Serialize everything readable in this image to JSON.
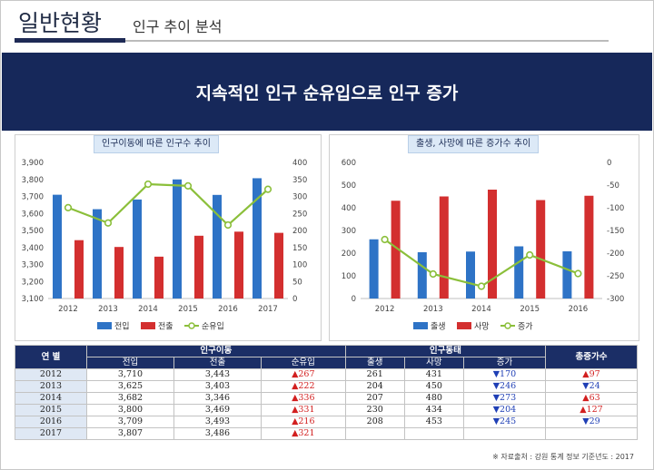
{
  "header": {
    "main": "일반현황",
    "sub": "인구 추이 분석"
  },
  "banner": "지속적인 인구 순유입으로 인구 증가",
  "chart_data": [
    {
      "type": "bar",
      "title": "인구이동에 따른 인구수 추이",
      "categories": [
        "2012",
        "2013",
        "2014",
        "2015",
        "2016",
        "2017"
      ],
      "series": [
        {
          "name": "전입",
          "values": [
            3710,
            3625,
            3682,
            3800,
            3709,
            3807
          ],
          "color": "#2e73c6",
          "axis": "left"
        },
        {
          "name": "전출",
          "values": [
            3443,
            3403,
            3346,
            3469,
            3493,
            3486
          ],
          "color": "#d32f2f",
          "axis": "left"
        },
        {
          "name": "순유입",
          "values": [
            267,
            222,
            336,
            331,
            216,
            321
          ],
          "color": "#8bbf3a",
          "axis": "right",
          "type": "line"
        }
      ],
      "ylim": [
        3100,
        3900
      ],
      "yticks": [
        "3,100",
        "3,200",
        "3,300",
        "3,400",
        "3,500",
        "3,600",
        "3,700",
        "3,800",
        "3,900"
      ],
      "y2lim": [
        0,
        400
      ],
      "y2ticks": [
        "0",
        "50",
        "100",
        "150",
        "200",
        "250",
        "300",
        "350",
        "400"
      ]
    },
    {
      "type": "bar",
      "title": "출생, 사망에 따른 증가수 추이",
      "categories": [
        "2012",
        "2013",
        "2014",
        "2015",
        "2016"
      ],
      "series": [
        {
          "name": "출생",
          "values": [
            261,
            204,
            207,
            230,
            208
          ],
          "color": "#2e73c6",
          "axis": "left"
        },
        {
          "name": "사망",
          "values": [
            431,
            450,
            480,
            434,
            453
          ],
          "color": "#d32f2f",
          "axis": "left"
        },
        {
          "name": "증가",
          "values": [
            -170,
            -246,
            -273,
            -204,
            -245
          ],
          "color": "#8bbf3a",
          "axis": "right",
          "type": "line"
        }
      ],
      "ylim": [
        0,
        600
      ],
      "yticks": [
        "0",
        "100",
        "200",
        "300",
        "400",
        "500",
        "600"
      ],
      "y2lim": [
        -300,
        0
      ],
      "y2ticks": [
        "-300",
        "-250",
        "-200",
        "-150",
        "-100",
        "-50",
        "0"
      ]
    }
  ],
  "table": {
    "col_year": "연  별",
    "group1": "인구이동",
    "group2": "인구동태",
    "col_total": "총증가수",
    "sub1": [
      "전입",
      "전출",
      "순유입"
    ],
    "sub2": [
      "출생",
      "사망",
      "증가"
    ],
    "rows": [
      {
        "year": "2012",
        "in": "3,710",
        "out": "3,443",
        "net": "▲267",
        "birth": "261",
        "death": "431",
        "inc": "▼170",
        "total": "▲97"
      },
      {
        "year": "2013",
        "in": "3,625",
        "out": "3,403",
        "net": "▲222",
        "birth": "204",
        "death": "450",
        "inc": "▼246",
        "total": "▼24"
      },
      {
        "year": "2014",
        "in": "3,682",
        "out": "3,346",
        "net": "▲336",
        "birth": "207",
        "death": "480",
        "inc": "▼273",
        "total": "▲63"
      },
      {
        "year": "2015",
        "in": "3,800",
        "out": "3,469",
        "net": "▲331",
        "birth": "230",
        "death": "434",
        "inc": "▼204",
        "total": "▲127"
      },
      {
        "year": "2016",
        "in": "3,709",
        "out": "3,493",
        "net": "▲216",
        "birth": "208",
        "death": "453",
        "inc": "▼245",
        "total": "▼29"
      },
      {
        "year": "2017",
        "in": "3,807",
        "out": "3,486",
        "net": "▲321",
        "birth": "",
        "death": "",
        "inc": "",
        "total": ""
      }
    ]
  },
  "footnote": "※ 자료출처 : 강원 통계 정보 기준년도 : 2017"
}
